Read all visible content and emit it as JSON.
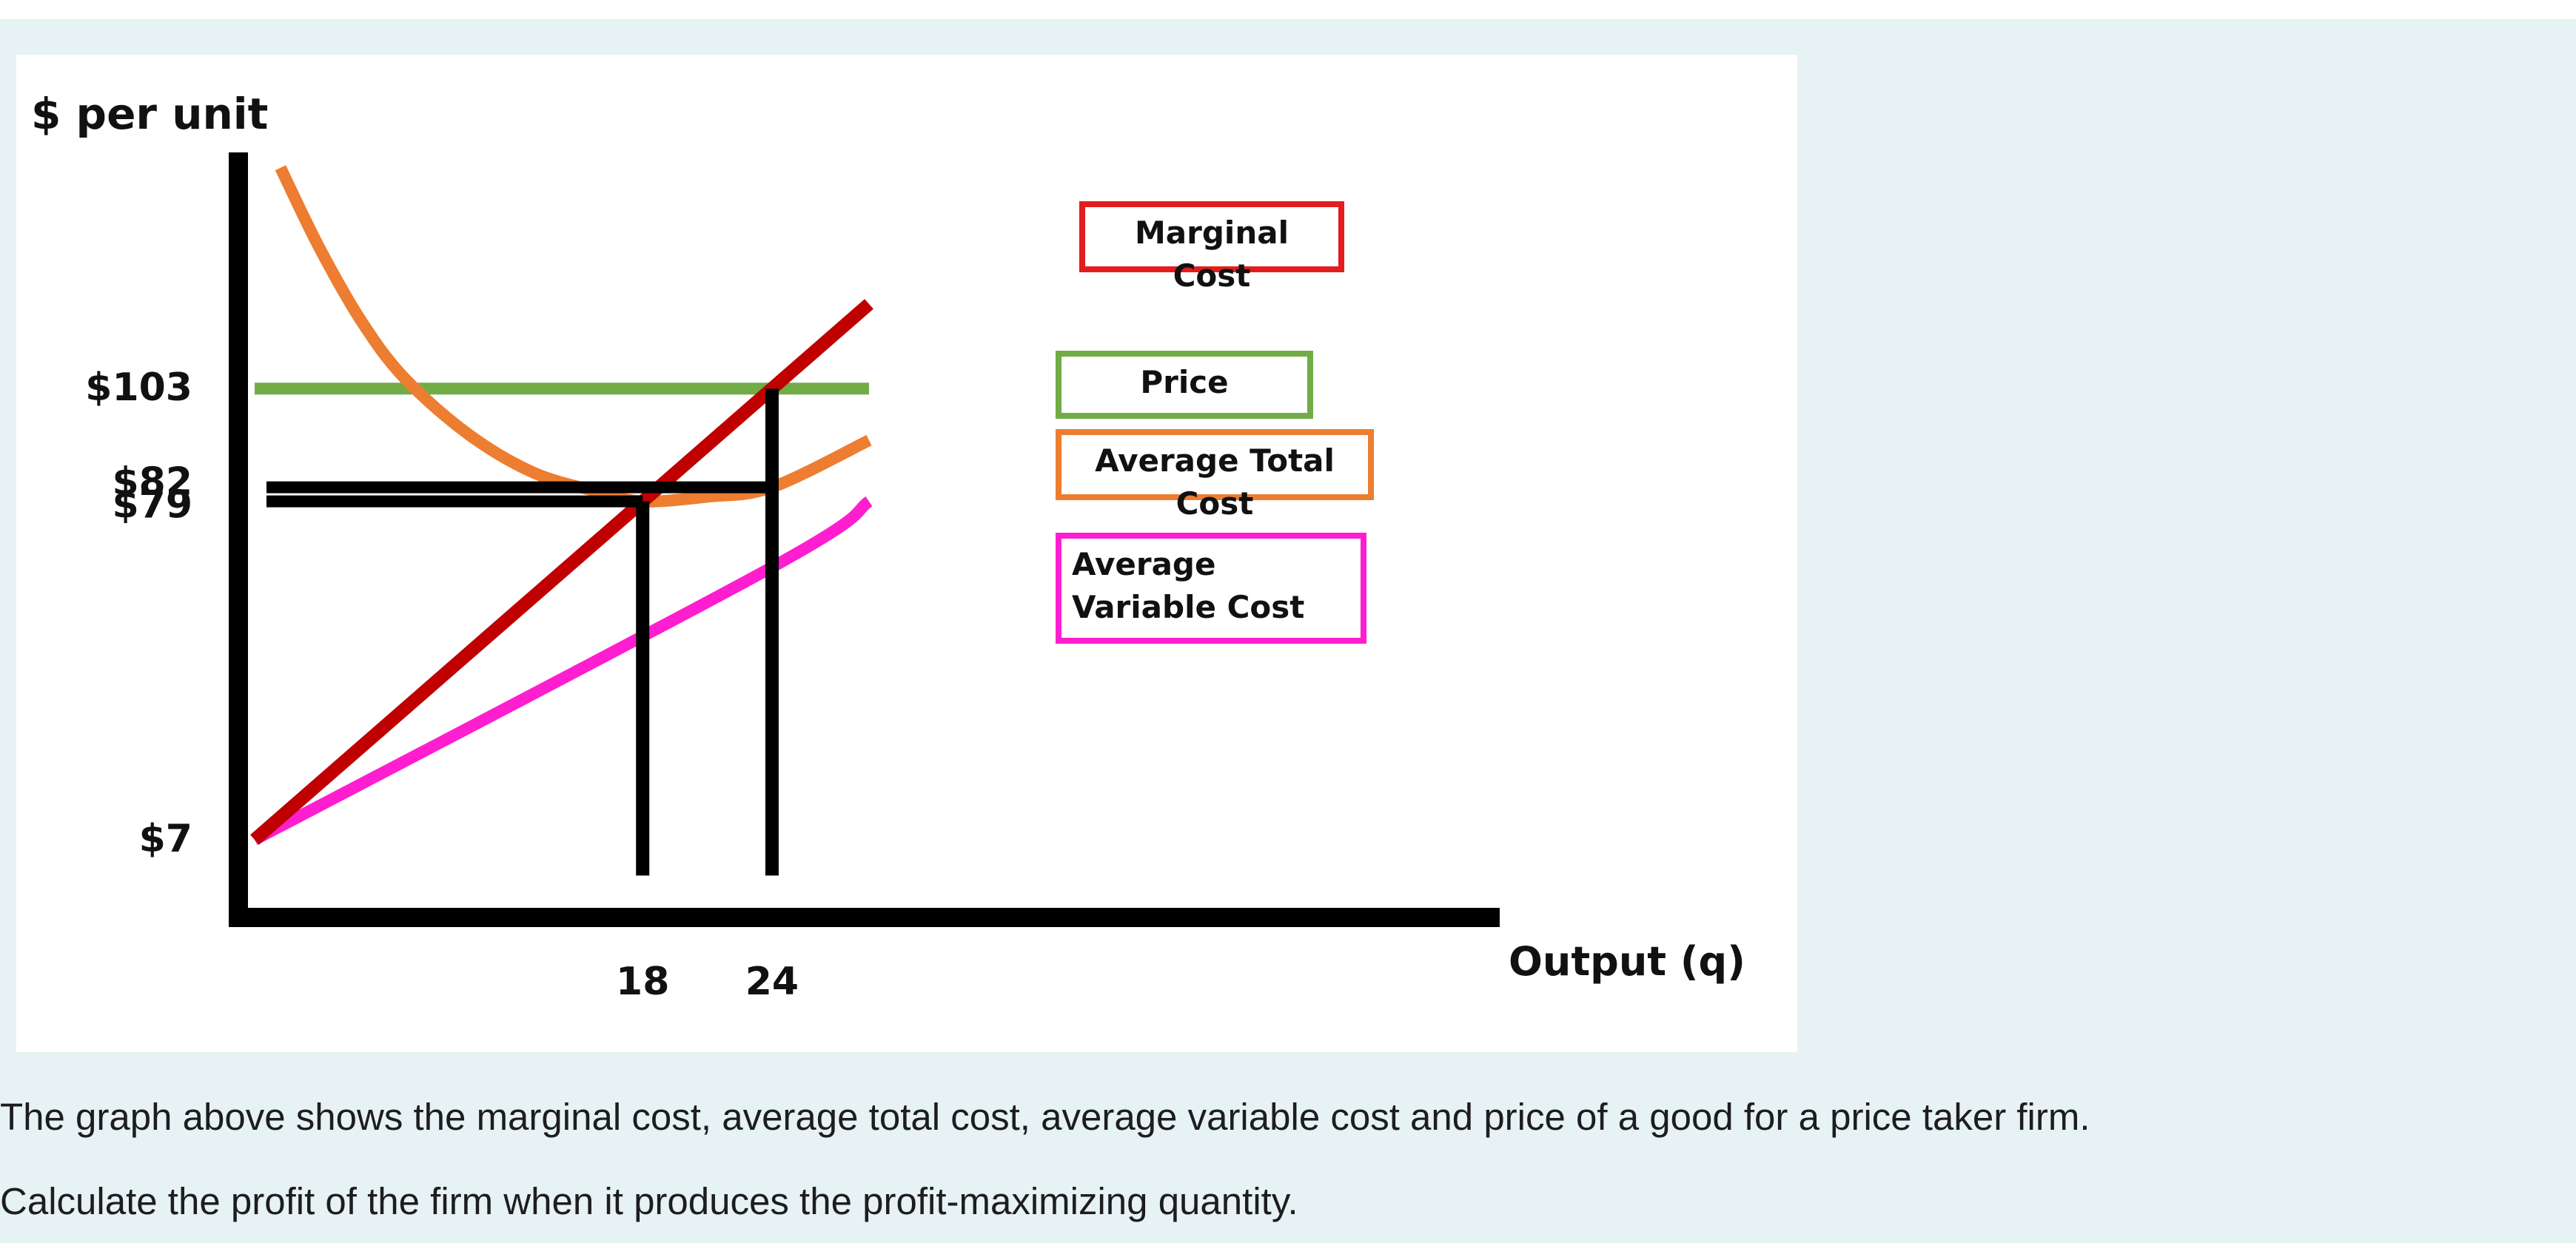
{
  "chart_data": {
    "type": "line",
    "title": "",
    "xlabel": "Output (q)",
    "ylabel": "$ per unit",
    "xlim": [
      0,
      57
    ],
    "ylim": [
      -13,
      152
    ],
    "x_ticks": [
      {
        "value": 18,
        "label": "18"
      },
      {
        "value": 24,
        "label": "24"
      }
    ],
    "y_ticks": [
      {
        "value": 103,
        "label": "$103"
      },
      {
        "value": 82,
        "label": "$82"
      },
      {
        "value": 79,
        "label": "$79"
      },
      {
        "value": 7,
        "label": "$7"
      }
    ],
    "series": [
      {
        "name": "Marginal Cost",
        "color": "#c00000",
        "points": [
          [
            0,
            7
          ],
          [
            24,
            103
          ],
          [
            28.5,
            121
          ]
        ]
      },
      {
        "name": "Price",
        "color": "#71ac47",
        "points": [
          [
            0,
            103
          ],
          [
            28.5,
            103
          ]
        ]
      },
      {
        "name": "Average Total Cost",
        "color": "#ed7d31",
        "points": [
          [
            1.2,
            150
          ],
          [
            3,
            133
          ],
          [
            5,
            117
          ],
          [
            7,
            105
          ],
          [
            10,
            93
          ],
          [
            13,
            85
          ],
          [
            16,
            81
          ],
          [
            18,
            79
          ],
          [
            21,
            80
          ],
          [
            24,
            82
          ],
          [
            28.5,
            92
          ]
        ]
      },
      {
        "name": "Average Variable Cost",
        "color": "#ff1ecf",
        "points": [
          [
            0,
            7
          ],
          [
            24,
            65
          ],
          [
            28.5,
            79
          ]
        ]
      }
    ],
    "reference_lines": [
      {
        "type": "horizontal",
        "value": 82,
        "x_from": 0,
        "x_to": 24
      },
      {
        "type": "horizontal",
        "value": 79,
        "x_from": 0,
        "x_to": 18
      },
      {
        "type": "vertical",
        "value": 18,
        "y_from": 0,
        "y_to": 79
      },
      {
        "type": "vertical",
        "value": 24,
        "y_from": 0,
        "y_to": 103
      }
    ],
    "legend": [
      "Marginal Cost",
      "Price",
      "Average Total Cost",
      "Average Variable Cost"
    ],
    "legend_placement": "right",
    "grid": false
  },
  "legend_labels": {
    "mc": "Marginal Cost",
    "price": "Price",
    "atc": "Average Total Cost",
    "avc": "Average Variable Cost"
  },
  "captions": {
    "line1": "The graph above shows the marginal cost, average total cost, average variable cost and price of a good for a price taker firm.",
    "line2": "Calculate the profit of the firm when it produces the profit-maximizing quantity."
  }
}
